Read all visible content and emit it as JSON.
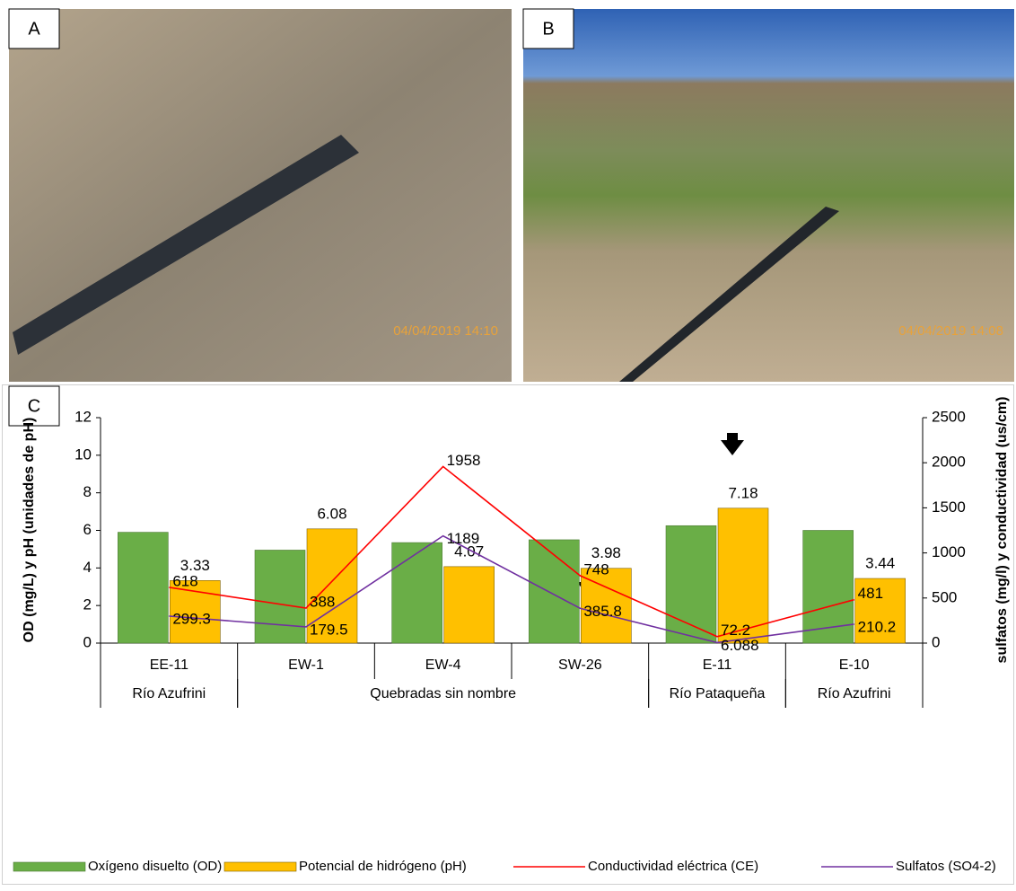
{
  "panels": [
    {
      "label": "A",
      "timestamp": "04/04/2019 14:10"
    },
    {
      "label": "B",
      "timestamp": "04/04/2019 14:08"
    }
  ],
  "chart_data": {
    "type": "bar",
    "panel_label": "C",
    "categories": [
      "EE-11",
      "EW-1",
      "EW-4",
      "SW-26",
      "E-11",
      "E-10"
    ],
    "groups": [
      {
        "label": "Río Azufrini",
        "categories": [
          "EE-11"
        ]
      },
      {
        "label": "Quebradas sin nombre",
        "categories": [
          "EW-1",
          "EW-4",
          "SW-26"
        ]
      },
      {
        "label": "Río Pataqueña",
        "categories": [
          "E-11"
        ]
      },
      {
        "label": "Río Azufrini",
        "categories": [
          "E-10"
        ]
      }
    ],
    "ylabel": "OD (mg/L) y pH (unidades de pH)",
    "y2label": "sulfatos (mg/l) y conductividad (us/cm)",
    "ylim": [
      0,
      12
    ],
    "yticks": [
      0,
      2,
      4,
      6,
      8,
      10,
      12
    ],
    "y2lim": [
      0,
      2500
    ],
    "y2ticks": [
      0,
      500,
      1000,
      1500,
      2000,
      2500
    ],
    "series": [
      {
        "name": "Oxígeno disuelto (OD)",
        "type": "bar",
        "color": "#6aae47",
        "values": [
          5.9,
          4.95,
          5.35,
          5.5,
          6.25,
          6.0
        ],
        "data_labels": false
      },
      {
        "name": "Potencial de hidrógeno (pH)",
        "type": "bar",
        "color": "#ffc000",
        "values": [
          3.33,
          6.08,
          4.07,
          3.98,
          7.18,
          3.44
        ],
        "data_labels": true
      },
      {
        "name": "Conductividad eléctrica (CE)",
        "type": "line",
        "axis": "y2",
        "color": "#ff0000",
        "values": [
          618,
          388,
          1958,
          748,
          72.2,
          481
        ],
        "data_labels": true
      },
      {
        "name": "Sulfatos (SO4-2)",
        "type": "line",
        "axis": "y2",
        "color": "#7030a0",
        "values": [
          299.3,
          179.5,
          1189,
          385.8,
          6.088,
          210.2
        ],
        "data_labels": true
      }
    ],
    "grid": false
  }
}
